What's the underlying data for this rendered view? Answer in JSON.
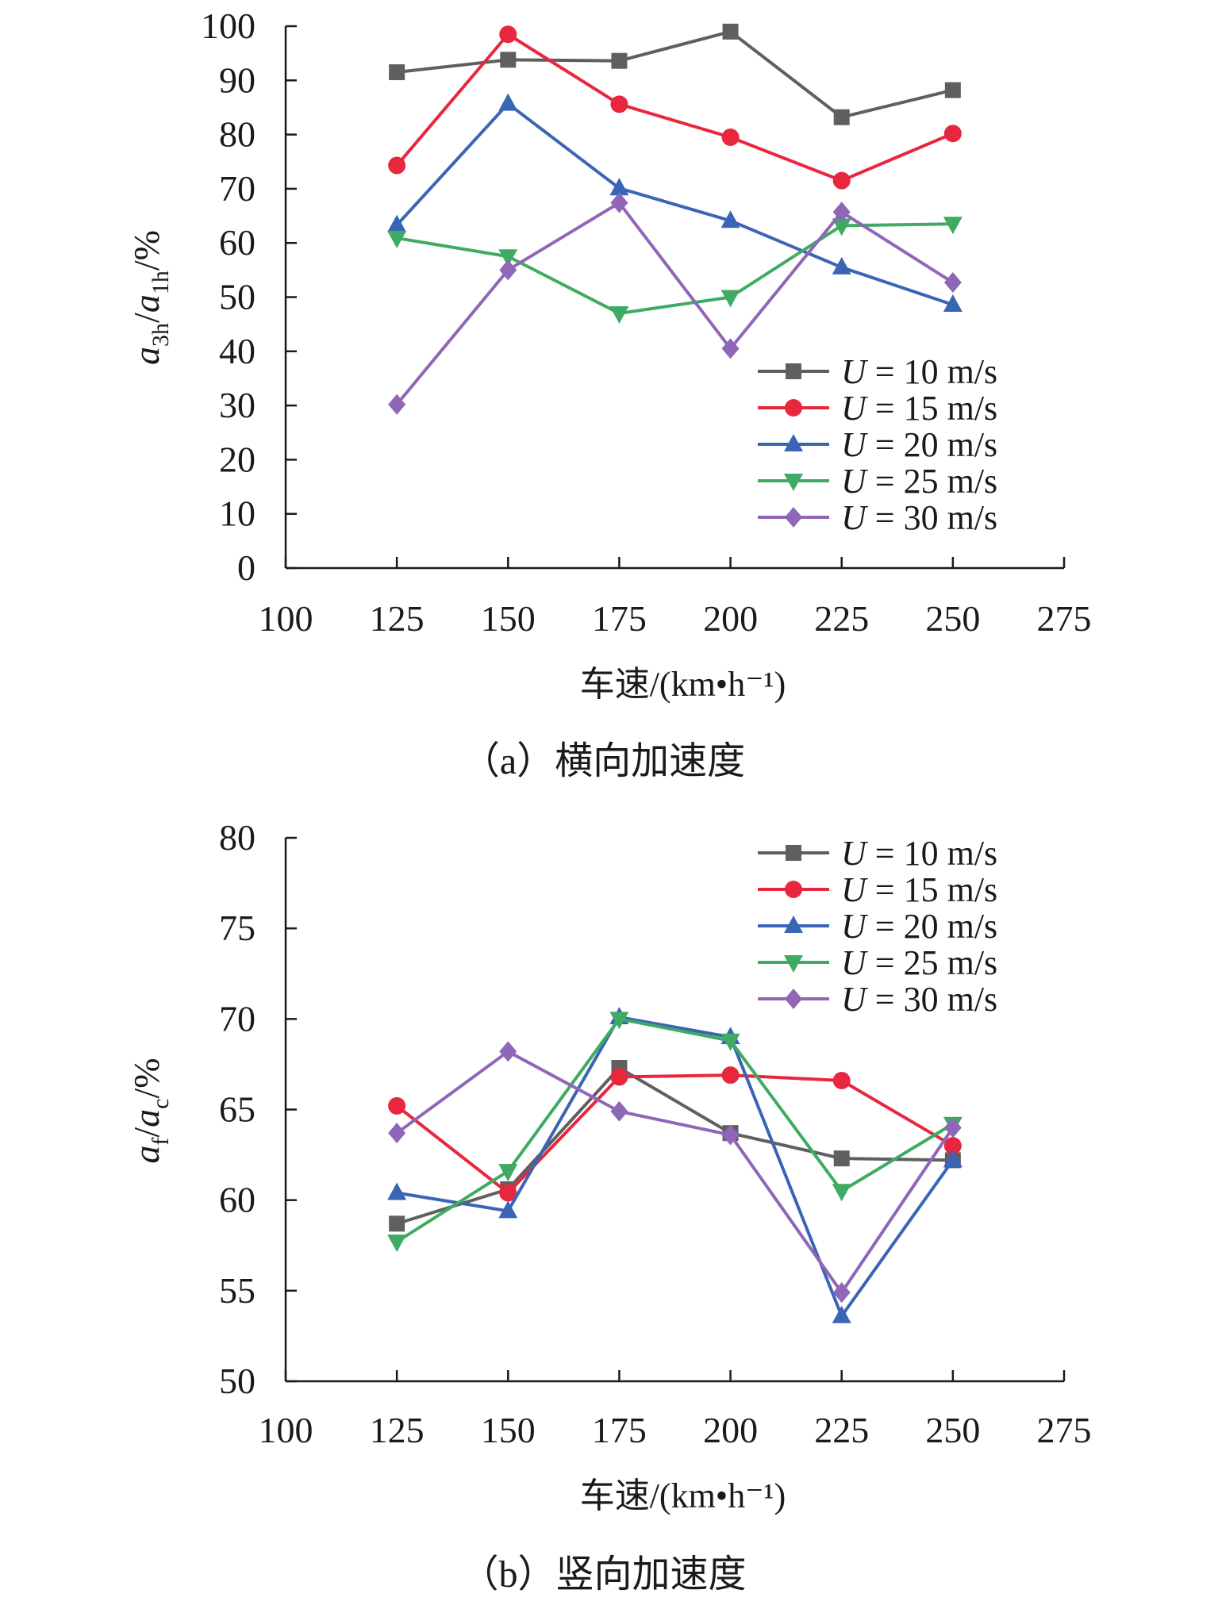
{
  "chart_data": [
    {
      "type": "line",
      "x": [
        125,
        150,
        175,
        200,
        225,
        250
      ],
      "xlim": [
        100,
        275
      ],
      "ylim": [
        0,
        100
      ],
      "x_ticks": [
        "100",
        "125",
        "150",
        "175",
        "200",
        "225",
        "250",
        "275"
      ],
      "y_ticks": [
        "0",
        "10",
        "20",
        "30",
        "40",
        "50",
        "60",
        "70",
        "80",
        "90",
        "100"
      ],
      "xlabel": "车速/(km•h⁻¹)",
      "ylabel": {
        "a": "a",
        "sub1": "3h",
        "slash": "/",
        "b": "a",
        "sub2": "1h",
        "unit": "/%"
      },
      "caption": "（a）横向加速度",
      "legend_position": "lower-right",
      "series": [
        {
          "name": "U = 10 m/s",
          "color": "#5f5f5f",
          "marker": "square",
          "values": [
            91.5,
            93.8,
            93.6,
            99.0,
            83.2,
            88.2
          ]
        },
        {
          "name": "U = 15 m/s",
          "color": "#e8273f",
          "marker": "circle",
          "values": [
            74.3,
            98.5,
            85.6,
            79.5,
            71.5,
            80.2
          ]
        },
        {
          "name": "U = 20 m/s",
          "color": "#3a65b5",
          "marker": "triangle-up",
          "values": [
            63.3,
            85.7,
            70.1,
            64.1,
            55.5,
            48.6
          ]
        },
        {
          "name": "U = 25 m/s",
          "color": "#3fab62",
          "marker": "triangle-down",
          "values": [
            60.9,
            57.5,
            47.0,
            50.0,
            63.2,
            63.5
          ]
        },
        {
          "name": "U = 30 m/s",
          "color": "#9066b8",
          "marker": "diamond",
          "values": [
            30.2,
            55.0,
            67.4,
            40.5,
            65.7,
            52.7
          ]
        }
      ]
    },
    {
      "type": "line",
      "x": [
        125,
        150,
        175,
        200,
        225,
        250
      ],
      "xlim": [
        100,
        275
      ],
      "ylim": [
        50,
        80
      ],
      "x_ticks": [
        "100",
        "125",
        "150",
        "175",
        "200",
        "225",
        "250",
        "275"
      ],
      "y_ticks": [
        "50",
        "55",
        "60",
        "65",
        "70",
        "75",
        "80"
      ],
      "xlabel": "车速/(km•h⁻¹)",
      "ylabel": {
        "a": "a",
        "sub1": "f",
        "slash": "/",
        "b": "a",
        "sub2": "c",
        "unit": "/%"
      },
      "caption": "（b）竖向加速度",
      "legend_position": "top-right",
      "series": [
        {
          "name": "U = 10 m/s",
          "color": "#5f5f5f",
          "marker": "square",
          "values": [
            58.7,
            60.6,
            67.3,
            63.7,
            62.3,
            62.2
          ]
        },
        {
          "name": "U = 15 m/s",
          "color": "#e8273f",
          "marker": "circle",
          "values": [
            65.2,
            60.4,
            66.8,
            66.9,
            66.6,
            63.0
          ]
        },
        {
          "name": "U = 20 m/s",
          "color": "#3a65b5",
          "marker": "triangle-up",
          "values": [
            60.4,
            59.4,
            70.1,
            69.0,
            53.6,
            62.2
          ]
        },
        {
          "name": "U = 25 m/s",
          "color": "#3fab62",
          "marker": "triangle-down",
          "values": [
            57.7,
            61.6,
            70.0,
            68.8,
            60.5,
            64.2
          ]
        },
        {
          "name": "U = 30 m/s",
          "color": "#9066b8",
          "marker": "diamond",
          "values": [
            63.7,
            68.2,
            64.9,
            63.6,
            54.9,
            64.0
          ]
        }
      ]
    }
  ]
}
